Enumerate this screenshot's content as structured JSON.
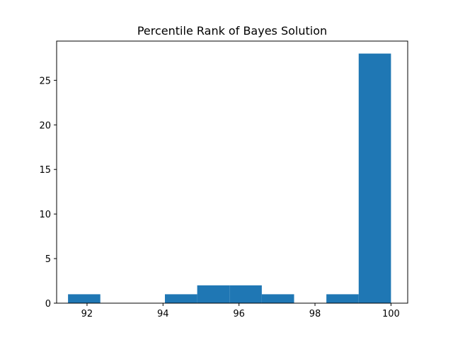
{
  "chart_data": {
    "type": "histogram",
    "title": "Percentile Rank of Bayes Solution",
    "xlabel": "",
    "ylabel": "",
    "xlim": [
      91.2,
      100.44
    ],
    "ylim": [
      0,
      29.4
    ],
    "x_ticks": [
      92,
      94,
      96,
      98,
      100
    ],
    "y_ticks": [
      0,
      5,
      10,
      15,
      20,
      25
    ],
    "bar_color": "#1f77b4",
    "bins": [
      {
        "x0": 91.5,
        "x1": 92.35,
        "count": 1
      },
      {
        "x0": 92.35,
        "x1": 93.2,
        "count": 0
      },
      {
        "x0": 93.2,
        "x1": 94.05,
        "count": 0
      },
      {
        "x0": 94.05,
        "x1": 94.9,
        "count": 1
      },
      {
        "x0": 94.9,
        "x1": 95.75,
        "count": 2
      },
      {
        "x0": 95.75,
        "x1": 96.6,
        "count": 2
      },
      {
        "x0": 96.6,
        "x1": 97.45,
        "count": 1
      },
      {
        "x0": 97.45,
        "x1": 98.3,
        "count": 0
      },
      {
        "x0": 98.3,
        "x1": 99.15,
        "count": 1
      },
      {
        "x0": 99.15,
        "x1": 100.0,
        "count": 28
      }
    ],
    "grid": false,
    "legend": "none"
  }
}
